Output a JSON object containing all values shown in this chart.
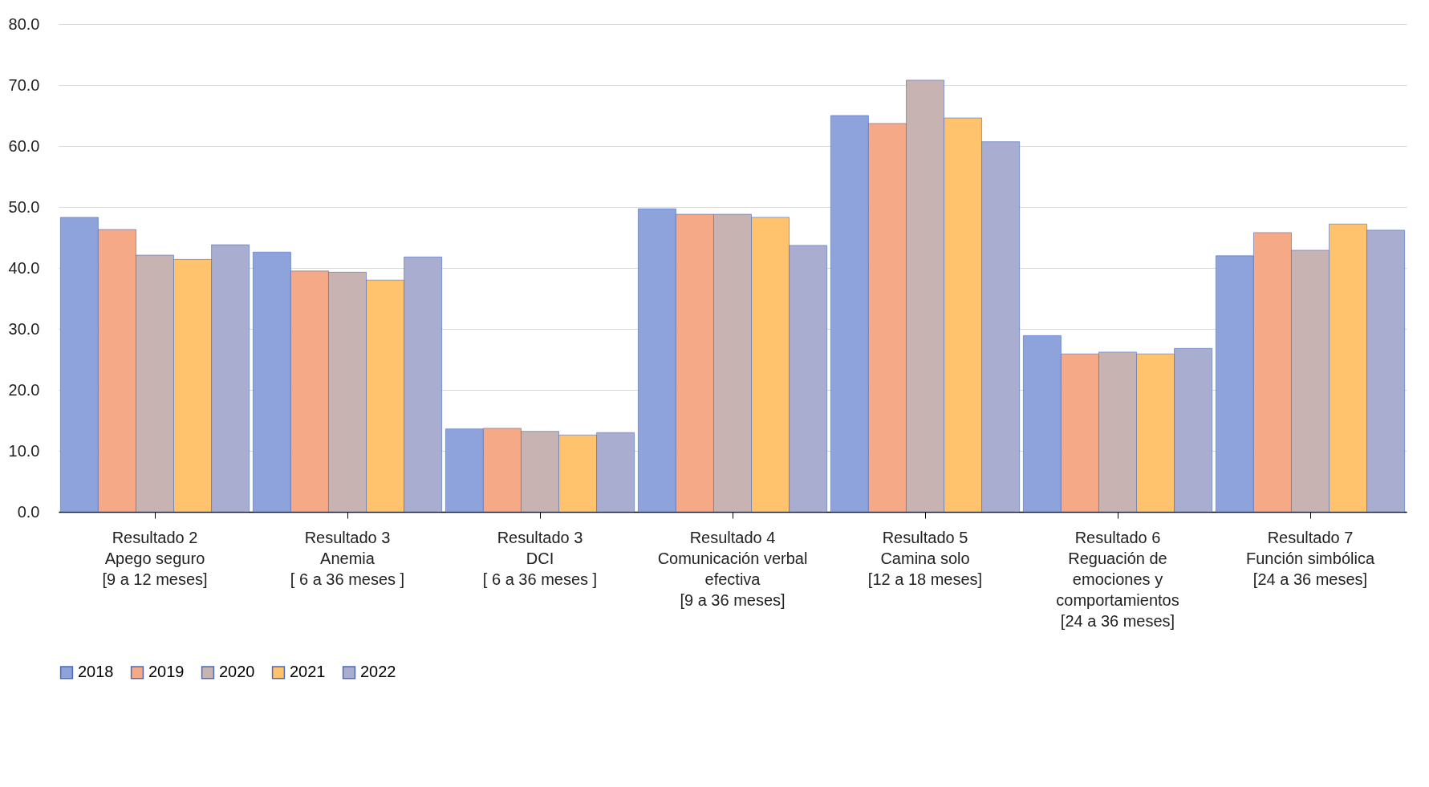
{
  "chart_data": {
    "type": "bar",
    "categories": [
      "Resultado 2\n\nApego seguro\n[9 a 12 meses]",
      "Resultado 3\n\nAnemia\n[ 6 a 36 meses ]",
      "Resultado 3\n\nDCI\n[ 6 a 36 meses ]",
      "Resultado 4\n\nComunicación verbal\nefectiva\n[9 a 36 meses]",
      "Resultado 5\n\nCamina solo\n[12 a 18 meses]",
      "Resultado 6\n\nReguación de\nemociones y\ncomportamientos\n[24 a 36 meses]",
      "Resultado 7\n\nFunción simbólica\n[24 a 36 meses]"
    ],
    "series": [
      {
        "name": "2018",
        "color": "#8ea2dc",
        "values": [
          48.3,
          42.6,
          13.6,
          49.7,
          65.0,
          28.9,
          42.0
        ]
      },
      {
        "name": "2019",
        "color": "#f5a987",
        "values": [
          46.3,
          39.5,
          13.7,
          48.8,
          63.7,
          25.9,
          45.8
        ]
      },
      {
        "name": "2020",
        "color": "#c8b3b3",
        "values": [
          42.1,
          39.3,
          13.2,
          48.8,
          70.8,
          26.2,
          42.9
        ]
      },
      {
        "name": "2021",
        "color": "#ffc36e",
        "values": [
          41.4,
          38.0,
          12.6,
          48.3,
          64.6,
          25.9,
          47.2
        ]
      },
      {
        "name": "2022",
        "color": "#a9adcf",
        "values": [
          43.8,
          41.8,
          13.0,
          43.7,
          60.7,
          26.8,
          46.2
        ]
      }
    ],
    "ylim": [
      0,
      80
    ],
    "yticks": [
      {
        "value": 0,
        "label": "0.0"
      },
      {
        "value": 10,
        "label": "10.0"
      },
      {
        "value": 20,
        "label": "20.0"
      },
      {
        "value": 30,
        "label": "30.0"
      },
      {
        "value": 40,
        "label": "40.0"
      },
      {
        "value": 50,
        "label": "50.0"
      },
      {
        "value": 60,
        "label": "60.0"
      },
      {
        "value": 70,
        "label": "70.0"
      },
      {
        "value": 80,
        "label": "80.0"
      }
    ],
    "grid": "y",
    "legend": "bottom"
  }
}
